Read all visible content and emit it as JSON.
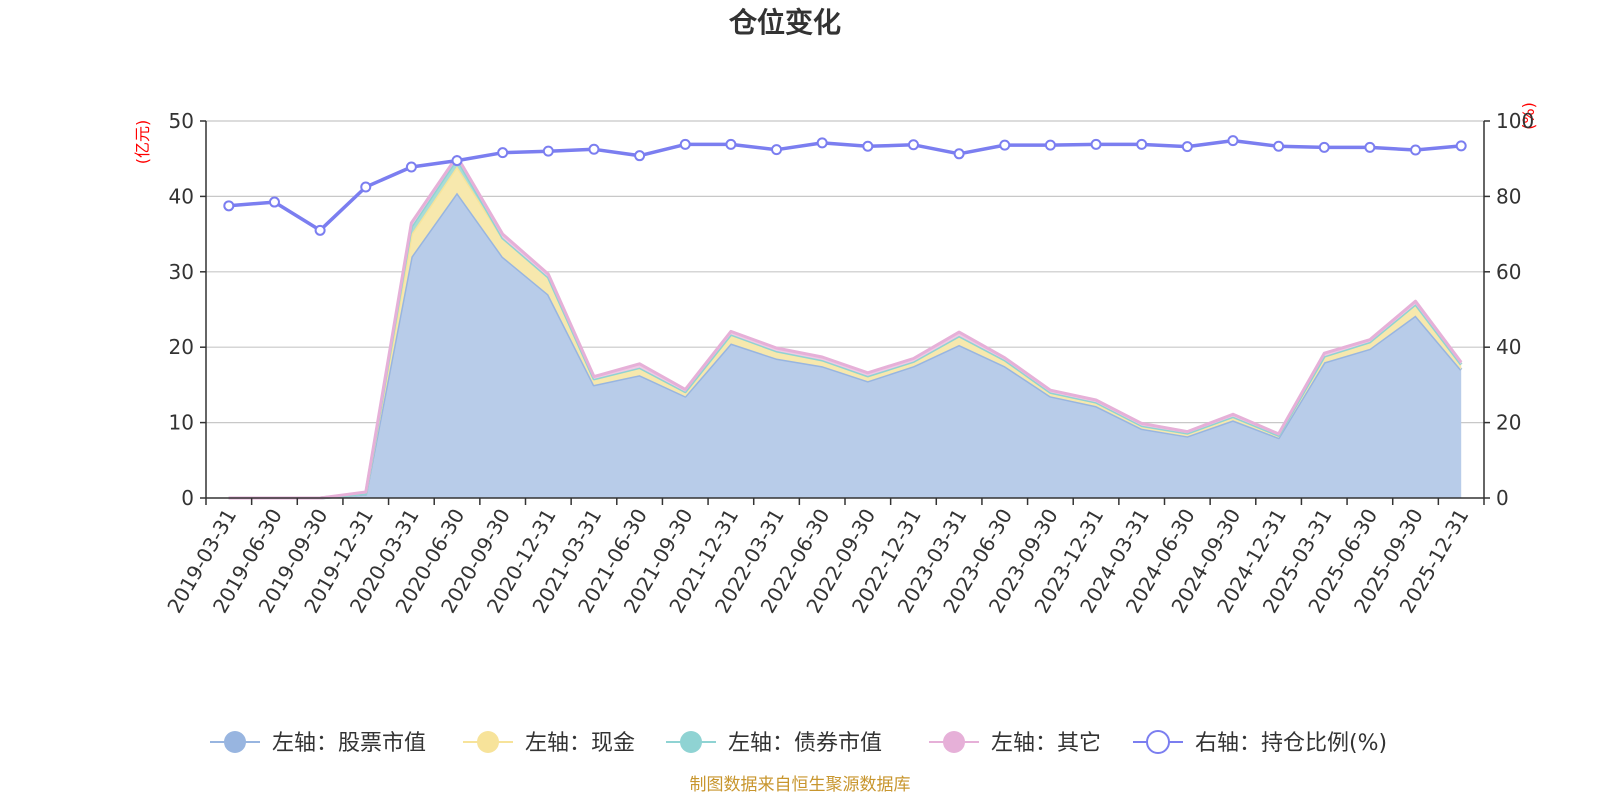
{
  "chart_data": {
    "type": "area",
    "title": "仓位变化",
    "y_left_unit": "(亿元)",
    "y_right_unit": "(%)",
    "y_left_lim": [
      0,
      50
    ],
    "y_left_ticks": [
      "0",
      "10",
      "20",
      "30",
      "40",
      "50"
    ],
    "y_right_lim": [
      0,
      100
    ],
    "y_right_ticks": [
      "0",
      "20",
      "40",
      "60",
      "80",
      "100"
    ],
    "grid": true,
    "legend_position": "bottom",
    "source": "制图数据来自恒生聚源数据库",
    "x": [
      "2019-03-31",
      "2019-06-30",
      "2019-09-30",
      "2019-12-31",
      "2020-03-31",
      "2020-06-30",
      "2020-09-30",
      "2020-12-31",
      "2021-03-31",
      "2021-06-30",
      "2021-09-30",
      "2021-12-31",
      "2022-03-31",
      "2022-06-30",
      "2022-09-30",
      "2022-12-31",
      "2023-03-31",
      "2023-06-30",
      "2023-09-30",
      "2023-12-31",
      "2024-03-31",
      "2024-06-30",
      "2024-09-30",
      "2024-12-31",
      "2025-03-31",
      "2025-06-30",
      "2025-09-30",
      "2025-12-31"
    ],
    "series": [
      {
        "name": "左轴：股票市值",
        "axis": "left",
        "color": "#98b5e0",
        "fill": "#b8cce9",
        "values": [
          0,
          0,
          0,
          0.5,
          32,
          40.5,
          32,
          27,
          15,
          16.3,
          13.5,
          20.5,
          18.5,
          17.5,
          15.5,
          17.5,
          20.3,
          17.5,
          13.5,
          12.2,
          9.2,
          8.2,
          10.3,
          8,
          18,
          19.8,
          24.2,
          17
        ]
      },
      {
        "name": "左轴：现金",
        "axis": "left",
        "color": "#f7e39a",
        "fill": "#f7e8ad",
        "values": [
          0,
          0,
          0,
          0.1,
          3,
          3.5,
          2.5,
          2.3,
          0.8,
          1,
          0.6,
          1.2,
          1,
          0.8,
          0.7,
          0.6,
          1.2,
          0.8,
          0.5,
          0.5,
          0.4,
          0.4,
          0.5,
          0.3,
          0.8,
          0.9,
          1.5,
          0.7
        ]
      },
      {
        "name": "左轴：债券市值",
        "axis": "left",
        "color": "#8fd3d3",
        "fill": "#a8dcd6",
        "values": [
          0,
          0,
          0,
          0,
          1,
          1,
          0,
          0,
          0,
          0,
          0,
          0,
          0,
          0,
          0,
          0,
          0,
          0,
          0,
          0,
          0,
          0,
          0,
          0,
          0,
          0,
          0,
          0
        ]
      },
      {
        "name": "左轴：其它",
        "axis": "left",
        "color": "#e6b0d8",
        "fill": "#efc9e4",
        "values": [
          0,
          0,
          0,
          0.2,
          0.5,
          0.3,
          0.5,
          0.4,
          0.3,
          0.5,
          0.3,
          0.4,
          0.4,
          0.4,
          0.4,
          0.4,
          0.5,
          0.3,
          0.3,
          0.3,
          0.3,
          0.2,
          0.3,
          0.2,
          0.4,
          0.3,
          0.4,
          0.3
        ]
      },
      {
        "name": "右轴：持仓比例(%)",
        "axis": "right",
        "color": "#7b7ef0",
        "values": [
          77.5,
          78.5,
          71,
          82.5,
          87.8,
          89.5,
          91.6,
          92,
          92.5,
          90.8,
          93.8,
          93.8,
          92.4,
          94.2,
          93.3,
          93.7,
          91.3,
          93.6,
          93.6,
          93.8,
          93.8,
          93.2,
          94.8,
          93.3,
          93,
          93,
          92.3,
          93.4
        ]
      }
    ]
  }
}
